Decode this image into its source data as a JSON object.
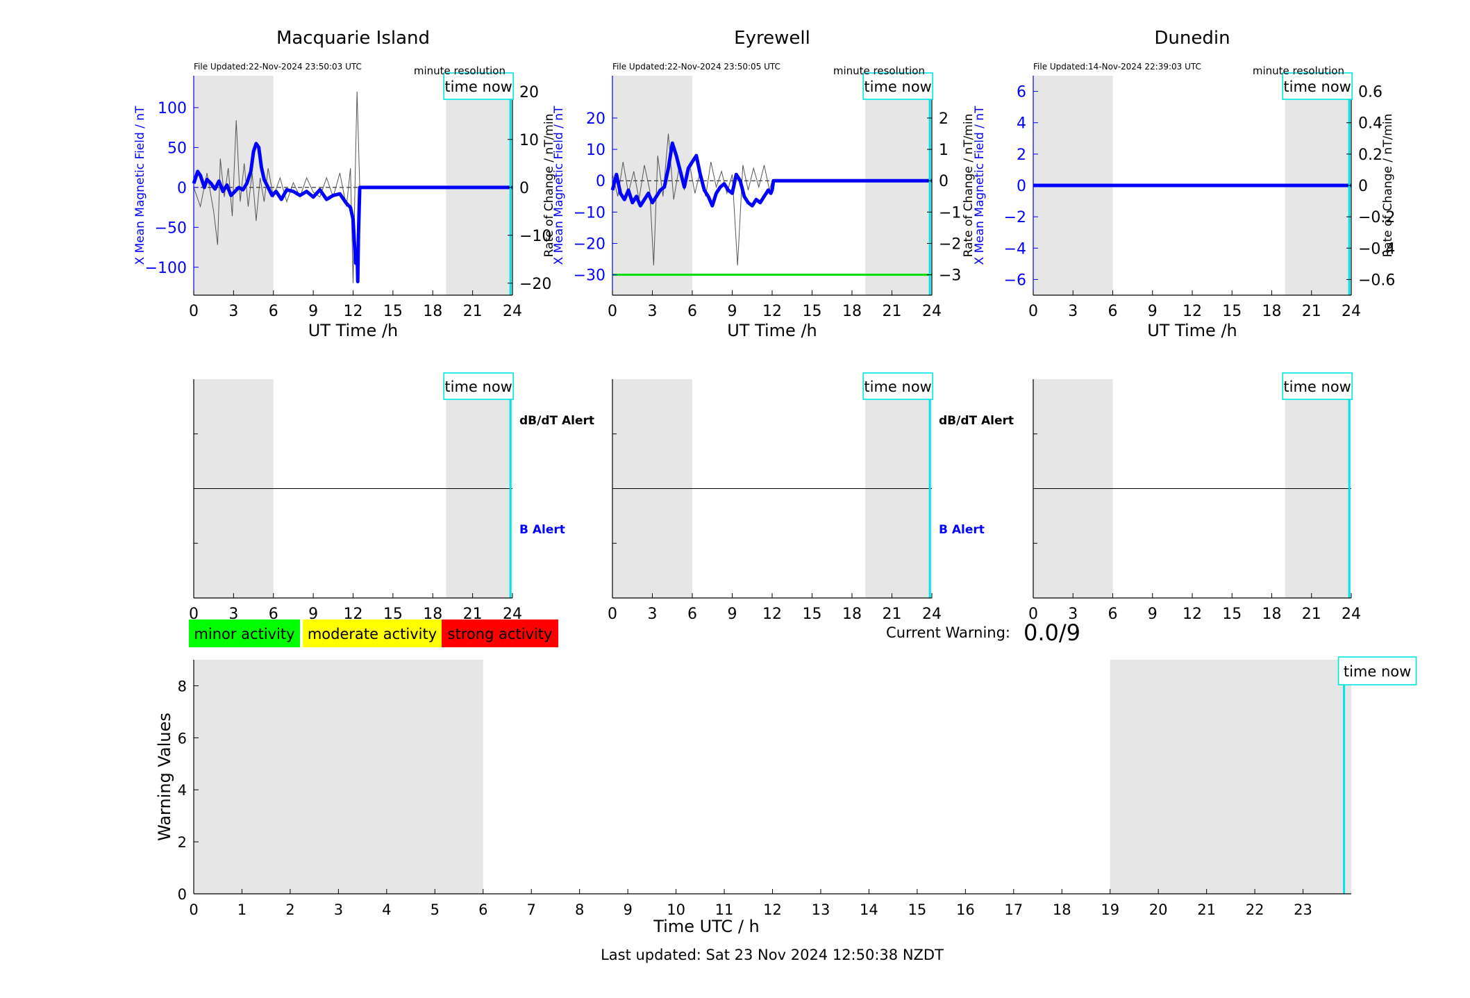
{
  "figure": {
    "last_updated": "Last updated: Sat 23 Nov 2024 12:50:38 NZDT",
    "current_warning_label": "Current Warning:",
    "current_warning_value": "0.0/9",
    "legend": [
      {
        "label": "minor activity",
        "color": "#00ff00"
      },
      {
        "label": "moderate activity",
        "color": "#ffff00"
      },
      {
        "label": "strong activity",
        "color": "#ff0000"
      }
    ]
  },
  "colors": {
    "field_trace": "#0000ff",
    "rate_trace": "#555555",
    "time_now": "#00e5e5",
    "night_shading": "#e6e6e6",
    "threshold_line": "#00dd00",
    "alert_b_text": "#0000ff"
  },
  "chart_data": [
    {
      "type": "line",
      "panel": "macquarie-field",
      "title": "Macquarie Island",
      "file_updated": "File Updated:22-Nov-2024 23:50:03 UTC",
      "resolution": "minute resolution",
      "time_now_label": "time now",
      "xlabel": "UT Time /h",
      "ylabel_left": "X Mean Magnetic Field / nT",
      "ylabel_right": "Rate of Change / nT/min",
      "xlim": [
        0,
        24
      ],
      "ylim_left": [
        -135,
        140
      ],
      "ylim_right": [
        -22.5,
        23.3
      ],
      "xticks": [
        0,
        3,
        6,
        9,
        12,
        15,
        18,
        21,
        24
      ],
      "yticks_left": [
        -100,
        -50,
        0,
        50,
        100
      ],
      "yticks_right": [
        -20,
        -10,
        0,
        10,
        20
      ],
      "shaded_x": [
        [
          0,
          6
        ],
        [
          19,
          24
        ]
      ],
      "time_now_x": 23.85,
      "series": [
        {
          "axis": "left",
          "x": [
            0,
            0.3,
            0.5,
            0.8,
            1.0,
            1.3,
            1.6,
            1.9,
            2.2,
            2.5,
            2.8,
            3.1,
            3.4,
            3.7,
            4.0,
            4.3,
            4.5,
            4.7,
            4.9,
            5.1,
            5.3,
            5.6,
            5.9,
            6.2,
            6.6,
            7.0,
            7.5,
            8.0,
            8.5,
            9.0,
            9.5,
            10.0,
            10.5,
            11.0,
            11.5,
            11.8,
            12.0,
            12.1,
            12.2,
            12.3,
            12.35,
            12.4,
            12.5,
            13,
            24
          ],
          "y": [
            5,
            20,
            15,
            0,
            10,
            5,
            -2,
            8,
            -5,
            3,
            -10,
            -5,
            0,
            -3,
            5,
            20,
            45,
            55,
            50,
            25,
            10,
            0,
            -10,
            -5,
            -15,
            -3,
            -5,
            -10,
            -5,
            -12,
            -3,
            -15,
            -10,
            -8,
            -20,
            -25,
            -40,
            -70,
            -95,
            -80,
            -118,
            -60,
            0,
            0,
            0
          ]
        },
        {
          "axis": "right",
          "x": [
            0,
            0.5,
            1.0,
            1.5,
            1.8,
            2.0,
            2.3,
            2.6,
            2.9,
            3.2,
            3.5,
            3.8,
            4.1,
            4.4,
            4.7,
            5.0,
            5.3,
            5.6,
            6.0,
            6.5,
            7.0,
            7.5,
            8.0,
            8.5,
            9.0,
            9.5,
            10.0,
            10.5,
            11.0,
            11.5,
            11.8,
            12.0,
            12.2,
            12.3,
            12.5
          ],
          "y": [
            0,
            -4,
            3,
            -5,
            -12,
            6,
            -2,
            4,
            -6,
            14,
            -3,
            5,
            -4,
            3,
            -7,
            2,
            -3,
            4,
            -2,
            2,
            -3,
            1,
            -2,
            2,
            -1,
            -2,
            2,
            -2,
            3,
            -4,
            4,
            -20,
            8,
            20,
            0
          ]
        }
      ]
    },
    {
      "type": "line",
      "panel": "eyrewell-field",
      "title": "Eyrewell",
      "file_updated": "File Updated:22-Nov-2024 23:50:05 UTC",
      "resolution": "minute resolution",
      "time_now_label": "time now",
      "xlabel": "UT Time /h",
      "ylabel_left": "X Mean Magnetic Field / nT",
      "ylabel_right": "Rate of Change / nT/min",
      "xlim": [
        0,
        24
      ],
      "ylim_left": [
        -36.5,
        33.5
      ],
      "ylim_right": [
        -3.65,
        3.35
      ],
      "xticks": [
        0,
        3,
        6,
        9,
        12,
        15,
        18,
        21,
        24
      ],
      "yticks_left": [
        -30,
        -20,
        -10,
        0,
        10,
        20
      ],
      "yticks_right": [
        -3,
        -2,
        -1,
        0,
        1,
        2
      ],
      "shaded_x": [
        [
          0,
          6
        ],
        [
          19,
          24
        ]
      ],
      "time_now_x": 23.85,
      "threshold_y": -30,
      "series": [
        {
          "axis": "left",
          "x": [
            0,
            0.3,
            0.6,
            0.9,
            1.2,
            1.5,
            1.8,
            2.1,
            2.4,
            2.7,
            3.0,
            3.3,
            3.6,
            3.9,
            4.2,
            4.5,
            4.8,
            5.1,
            5.4,
            5.7,
            6.0,
            6.3,
            6.6,
            6.9,
            7.2,
            7.5,
            7.8,
            8.1,
            8.4,
            8.7,
            9.0,
            9.3,
            9.6,
            9.9,
            10.2,
            10.5,
            10.8,
            11.1,
            11.4,
            11.7,
            11.9,
            12.0,
            12.1,
            24
          ],
          "y": [
            -3,
            2,
            -4,
            -6,
            -3,
            -7,
            -5,
            -8,
            -6,
            -4,
            -7,
            -5,
            -3,
            -2,
            4,
            12,
            8,
            3,
            -2,
            4,
            6,
            8,
            2,
            -3,
            -5,
            -8,
            -4,
            -2,
            -1,
            -3,
            -4,
            2,
            0,
            -5,
            -7,
            -8,
            -6,
            -7,
            -5,
            -3,
            -4,
            -3,
            0,
            0
          ]
        },
        {
          "axis": "right",
          "x": [
            0,
            0.4,
            0.8,
            1.2,
            1.6,
            2.0,
            2.4,
            2.8,
            3.1,
            3.4,
            3.8,
            4.2,
            4.6,
            5.0,
            5.4,
            5.8,
            6.2,
            6.6,
            7.0,
            7.4,
            7.8,
            8.2,
            8.6,
            9.0,
            9.4,
            9.8,
            10.2,
            10.6,
            11.0,
            11.4,
            11.8,
            12.0
          ],
          "y": [
            0.2,
            -0.5,
            0.6,
            -0.4,
            0.3,
            -0.6,
            0.5,
            -0.3,
            -2.7,
            0.8,
            -0.5,
            1.5,
            -0.6,
            0.4,
            -0.3,
            0.5,
            -0.4,
            0.3,
            -0.5,
            0.6,
            -0.2,
            0.3,
            -0.4,
            0.2,
            -2.7,
            0.5,
            -0.3,
            0.4,
            -0.2,
            0.5,
            -0.3,
            0
          ]
        }
      ]
    },
    {
      "type": "line",
      "panel": "dunedin-field",
      "title": "Dunedin",
      "file_updated": "File Updated:14-Nov-2024 22:39:03 UTC",
      "resolution": "minute resolution",
      "time_now_label": "time now",
      "xlabel": "UT Time /h",
      "ylabel_left": "X Mean Magnetic Field / nT",
      "ylabel_right": "Rate of Change / nT/min",
      "xlim": [
        0,
        24
      ],
      "ylim_left": [
        -7,
        7
      ],
      "ylim_right": [
        -0.7,
        0.7
      ],
      "xticks": [
        0,
        3,
        6,
        9,
        12,
        15,
        18,
        21,
        24
      ],
      "yticks_left": [
        -6,
        -4,
        -2,
        0,
        2,
        4,
        6
      ],
      "yticks_right": [
        -0.6,
        -0.4,
        -0.2,
        0,
        0.2,
        0.4,
        0.6
      ],
      "shaded_x": [
        [
          0,
          6
        ],
        [
          19,
          24
        ]
      ],
      "time_now_x": 23.85,
      "series": [
        {
          "axis": "left",
          "x": [
            0,
            24
          ],
          "y": [
            0,
            0
          ]
        },
        {
          "axis": "right",
          "x": [
            0,
            24
          ],
          "y": [
            0,
            0
          ]
        }
      ]
    },
    {
      "type": "line",
      "panel": "macquarie-alert",
      "xlim": [
        0,
        24
      ],
      "xticks": [
        0,
        3,
        6,
        9,
        12,
        15,
        18,
        21,
        24
      ],
      "shaded_x": [
        [
          0,
          6
        ],
        [
          19,
          24
        ]
      ],
      "time_now_x": 23.85,
      "time_now_label": "time now",
      "alert_top_label": "dB/dT Alert",
      "alert_bottom_label": "B Alert"
    },
    {
      "type": "line",
      "panel": "eyrewell-alert",
      "xlim": [
        0,
        24
      ],
      "xticks": [
        0,
        3,
        6,
        9,
        12,
        15,
        18,
        21,
        24
      ],
      "shaded_x": [
        [
          0,
          6
        ],
        [
          19,
          24
        ]
      ],
      "time_now_x": 23.85,
      "time_now_label": "time now",
      "alert_top_label": "dB/dT Alert",
      "alert_bottom_label": "B Alert"
    },
    {
      "type": "line",
      "panel": "dunedin-alert",
      "xlim": [
        0,
        24
      ],
      "xticks": [
        0,
        3,
        6,
        9,
        12,
        15,
        18,
        21,
        24
      ],
      "shaded_x": [
        [
          0,
          6
        ],
        [
          19,
          24
        ]
      ],
      "time_now_x": 23.85,
      "time_now_label": "time now"
    },
    {
      "type": "line",
      "panel": "warning-values",
      "xlabel": "Time UTC / h",
      "ylabel": "Warning Values",
      "xlim": [
        0,
        24
      ],
      "ylim": [
        0,
        9
      ],
      "xticks": [
        0,
        1,
        2,
        3,
        4,
        5,
        6,
        7,
        8,
        9,
        10,
        11,
        12,
        13,
        14,
        15,
        16,
        17,
        18,
        19,
        20,
        21,
        22,
        23
      ],
      "yticks": [
        0,
        2,
        4,
        6,
        8
      ],
      "shaded_x": [
        [
          0,
          6
        ],
        [
          19,
          24
        ]
      ],
      "time_now_x": 23.85,
      "time_now_label": "time now",
      "series": [
        {
          "x": [],
          "y": []
        }
      ]
    }
  ]
}
